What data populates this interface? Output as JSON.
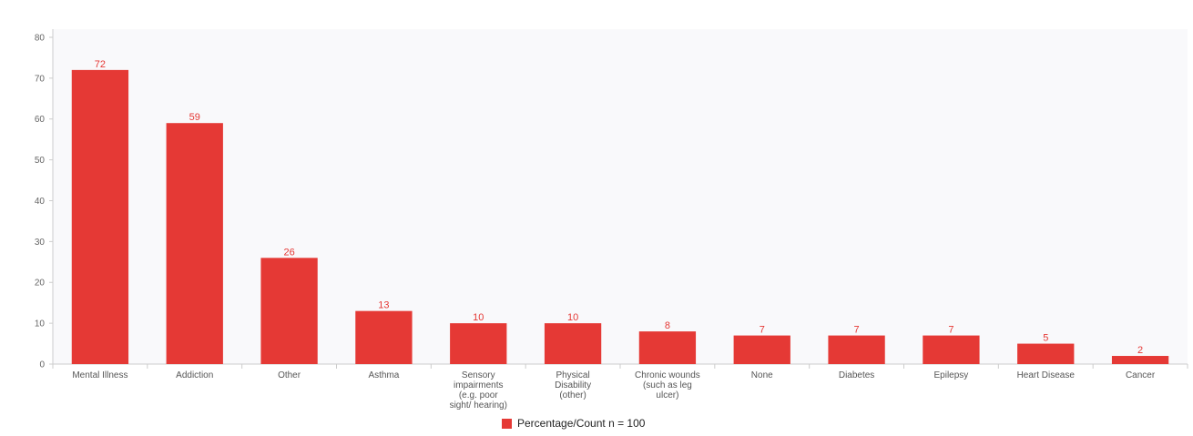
{
  "colors": {
    "bar": "#e53935",
    "plot_bg": "#f9f9fb",
    "axis": "#cccccc"
  },
  "chart_data": {
    "type": "bar",
    "categories": [
      "Mental Illness",
      "Addiction",
      "Other",
      "Asthma",
      "Sensory impairments (e.g. poor sight/ hearing)",
      "Physical Disability (other)",
      "Chronic wounds (such as leg ulcer)",
      "None",
      "Diabetes",
      "Epilepsy",
      "Heart Disease",
      "Cancer"
    ],
    "category_lines": [
      [
        "Mental Illness"
      ],
      [
        "Addiction"
      ],
      [
        "Other"
      ],
      [
        "Asthma"
      ],
      [
        "Sensory",
        "impairments",
        "(e.g. poor",
        "sight/ hearing)"
      ],
      [
        "Physical",
        "Disability",
        "(other)"
      ],
      [
        "Chronic wounds",
        "(such as leg",
        "ulcer)"
      ],
      [
        "None"
      ],
      [
        "Diabetes"
      ],
      [
        "Epilepsy"
      ],
      [
        "Heart Disease"
      ],
      [
        "Cancer"
      ]
    ],
    "series": [
      {
        "name": "Percentage/Count n = 100",
        "values": [
          72,
          59,
          26,
          13,
          10,
          10,
          8,
          7,
          7,
          7,
          5,
          2
        ]
      }
    ],
    "yticks": [
      0,
      10,
      20,
      30,
      40,
      50,
      60,
      70,
      80
    ],
    "ylim": [
      0,
      82
    ],
    "grid": false,
    "data_labels": true,
    "legend_position": "bottom-center"
  },
  "legend": {
    "label": "Percentage/Count n = 100"
  }
}
